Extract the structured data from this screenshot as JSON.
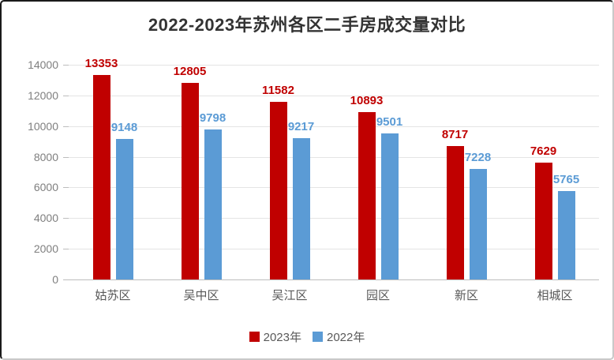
{
  "window": {
    "background": "#ffffff",
    "border_dark": "#1a1a1a",
    "border_light": "#c9c9c9"
  },
  "chart_data": {
    "type": "bar",
    "title": "2022-2023年苏州各区二手房成交量对比",
    "categories": [
      "姑苏区",
      "吴中区",
      "吴江区",
      "园区",
      "新区",
      "相城区"
    ],
    "series": [
      {
        "name": "2023年",
        "color": "#c00000",
        "values": [
          13353,
          12805,
          11582,
          10893,
          8717,
          7629
        ]
      },
      {
        "name": "2022年",
        "color": "#5b9bd5",
        "values": [
          9148,
          9798,
          9217,
          9501,
          7228,
          5765
        ]
      }
    ],
    "y_axis": {
      "min": 0,
      "max": 14000,
      "step": 2000,
      "tick_labels": [
        "0",
        "2000",
        "4000",
        "6000",
        "8000",
        "10000",
        "12000",
        "14000"
      ]
    },
    "grid": "horizontal",
    "legend_position": "bottom",
    "value_labels": "shown",
    "colors": {
      "title_text": "#333333",
      "y_tick_text": "#7f7f7f",
      "category_text": "#595959",
      "legend_text": "#595959",
      "gridline": "#e4e4e4",
      "axis_line": "#bdbdbd"
    }
  }
}
